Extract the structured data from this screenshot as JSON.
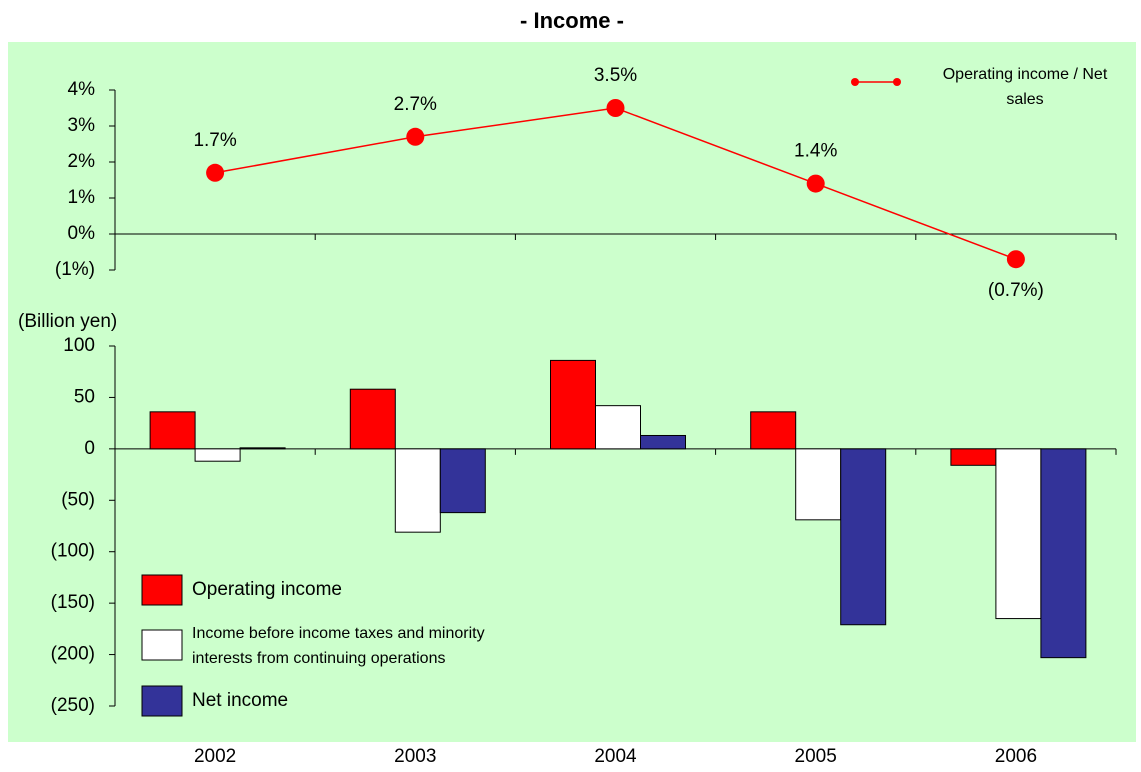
{
  "chart_data": [
    {
      "type": "line",
      "title": "- Income -",
      "series": [
        {
          "name": "Operating income / Net sales",
          "color": "#ff0000",
          "values": [
            1.7,
            2.7,
            3.5,
            1.4,
            -0.7
          ],
          "value_labels": [
            "1.7%",
            "2.7%",
            "3.5%",
            "1.4%",
            "(0.7%)"
          ]
        }
      ],
      "ylim": [
        -1,
        4
      ],
      "yticks": [
        {
          "value": 4,
          "label": "4%"
        },
        {
          "value": 3,
          "label": "3%"
        },
        {
          "value": 2,
          "label": "2%"
        },
        {
          "value": 1,
          "label": "1%"
        },
        {
          "value": 0,
          "label": "0%"
        },
        {
          "value": -1,
          "label": "(1%)"
        }
      ],
      "legend": "top-right"
    },
    {
      "type": "bar",
      "y_label": "(Billion yen)",
      "categories": [
        "2002",
        "2003",
        "2004",
        "2005",
        "2006"
      ],
      "series": [
        {
          "name": "Operating income",
          "color": "#ff0000",
          "values": [
            36,
            58,
            86,
            36,
            -16
          ]
        },
        {
          "name": "Income before income taxes and minority interests from continuing operations",
          "color": "#ffffff",
          "values": [
            -12,
            -81,
            42,
            -69,
            -165
          ]
        },
        {
          "name": "Net income",
          "color": "#333399",
          "values": [
            1,
            -62,
            13,
            -171,
            -203
          ]
        }
      ],
      "ylim": [
        -250,
        100
      ],
      "yticks": [
        100,
        50,
        0,
        {
          "value": -50,
          "label": "(50)"
        },
        {
          "value": -100,
          "label": "(100)"
        },
        {
          "value": -150,
          "label": "(150)"
        },
        {
          "value": -200,
          "label": "(200)"
        },
        {
          "value": -250,
          "label": "(250)"
        }
      ],
      "legend": "bottom-left"
    }
  ]
}
